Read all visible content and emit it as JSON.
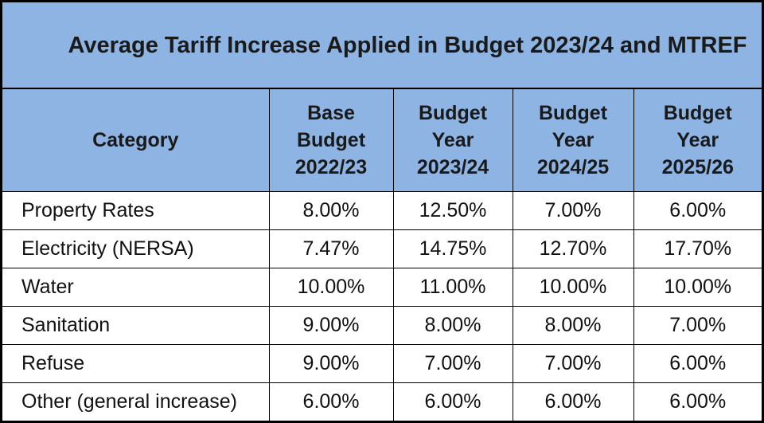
{
  "title": "Average Tariff Increase Applied in Budget 2023/24 and MTREF",
  "headers": {
    "category": "Category",
    "columns": [
      [
        "Base",
        "Budget",
        "2022/23"
      ],
      [
        "Budget",
        "Year",
        "2023/24"
      ],
      [
        "Budget",
        "Year",
        "2024/25"
      ],
      [
        "Budget",
        "Year",
        "2025/26"
      ]
    ]
  },
  "rows": [
    {
      "category": "Property Rates",
      "values": [
        "8.00%",
        "12.50%",
        "7.00%",
        "6.00%"
      ]
    },
    {
      "category": "Electricity (NERSA)",
      "values": [
        "7.47%",
        "14.75%",
        "12.70%",
        "17.70%"
      ]
    },
    {
      "category": "Water",
      "values": [
        "10.00%",
        "11.00%",
        "10.00%",
        "10.00%"
      ]
    },
    {
      "category": "Sanitation",
      "values": [
        "9.00%",
        "8.00%",
        "8.00%",
        "7.00%"
      ]
    },
    {
      "category": "Refuse",
      "values": [
        "9.00%",
        "7.00%",
        "7.00%",
        "6.00%"
      ]
    },
    {
      "category": "Other (general increase)",
      "values": [
        "6.00%",
        "6.00%",
        "6.00%",
        "6.00%"
      ]
    }
  ]
}
